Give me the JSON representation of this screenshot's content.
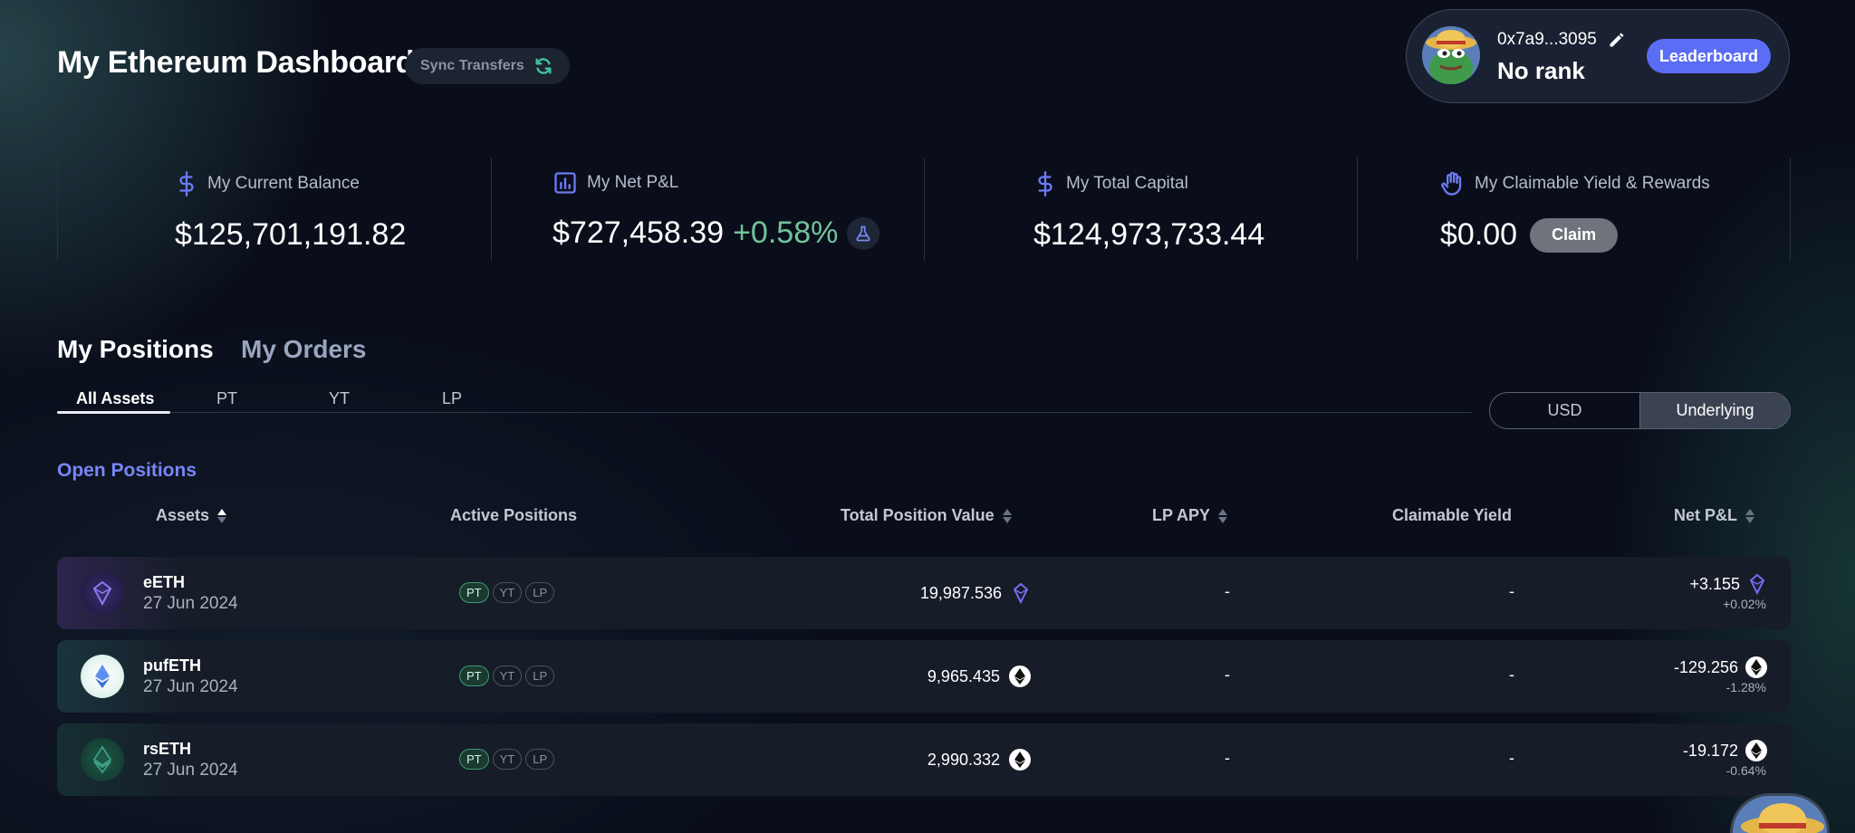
{
  "header": {
    "title": "My Ethereum Dashboard",
    "sync_label": "Sync Transfers"
  },
  "profile": {
    "address": "0x7a9...3095",
    "rank": "No rank",
    "leaderboard_label": "Leaderboard"
  },
  "stats": {
    "balance": {
      "label": "My Current Balance",
      "value": "$125,701,191.82",
      "icon": "dollar-icon"
    },
    "net_pnl": {
      "label": "My Net P&L",
      "value": "$727,458.39",
      "pct": "+0.58%",
      "icon": "bar-chart-icon"
    },
    "total_capital": {
      "label": "My Total Capital",
      "value": "$124,973,733.44",
      "icon": "dollar-icon"
    },
    "claimable": {
      "label": "My Claimable Yield & Rewards",
      "value": "$0.00",
      "claim_label": "Claim",
      "icon": "hand-icon"
    }
  },
  "tabs": {
    "main": [
      {
        "label": "My Positions",
        "active": true
      },
      {
        "label": "My Orders",
        "active": false
      }
    ],
    "sub": [
      {
        "label": "All Assets",
        "active": true
      },
      {
        "label": "PT"
      },
      {
        "label": "YT"
      },
      {
        "label": "LP"
      }
    ],
    "currency": [
      {
        "label": "USD",
        "active": false
      },
      {
        "label": "Underlying",
        "active": true
      }
    ]
  },
  "section_title": "Open Positions",
  "table": {
    "headers": {
      "assets": "Assets",
      "active_positions": "Active Positions",
      "total_position_value": "Total Position Value",
      "lp_apy": "LP APY",
      "claimable_yield": "Claimable Yield",
      "net_pnl": "Net P&L"
    },
    "rows": [
      {
        "name": "eETH",
        "date": "27 Jun 2024",
        "pills": [
          "PT",
          "YT",
          "LP"
        ],
        "value": "19,987.536",
        "lp_apy": "-",
        "claimable": "-",
        "pnl": "+3.155",
        "pnl_pct": "+0.02%",
        "unit_icon": "eeth-gem-icon"
      },
      {
        "name": "pufETH",
        "date": "27 Jun 2024",
        "pills": [
          "PT",
          "YT",
          "LP"
        ],
        "value": "9,965.435",
        "lp_apy": "-",
        "claimable": "-",
        "pnl": "-129.256",
        "pnl_pct": "-1.28%",
        "unit_icon": "eth-icon"
      },
      {
        "name": "rsETH",
        "date": "27 Jun 2024",
        "pills": [
          "PT",
          "YT",
          "LP"
        ],
        "value": "2,990.332",
        "lp_apy": "-",
        "claimable": "-",
        "pnl": "-19.172",
        "pnl_pct": "-0.64%",
        "unit_icon": "eth-icon"
      }
    ]
  },
  "colors": {
    "accent": "#5b6cf5",
    "section_title": "#7886f5",
    "positive": "#72c39a",
    "background": "#0a0e1b"
  }
}
